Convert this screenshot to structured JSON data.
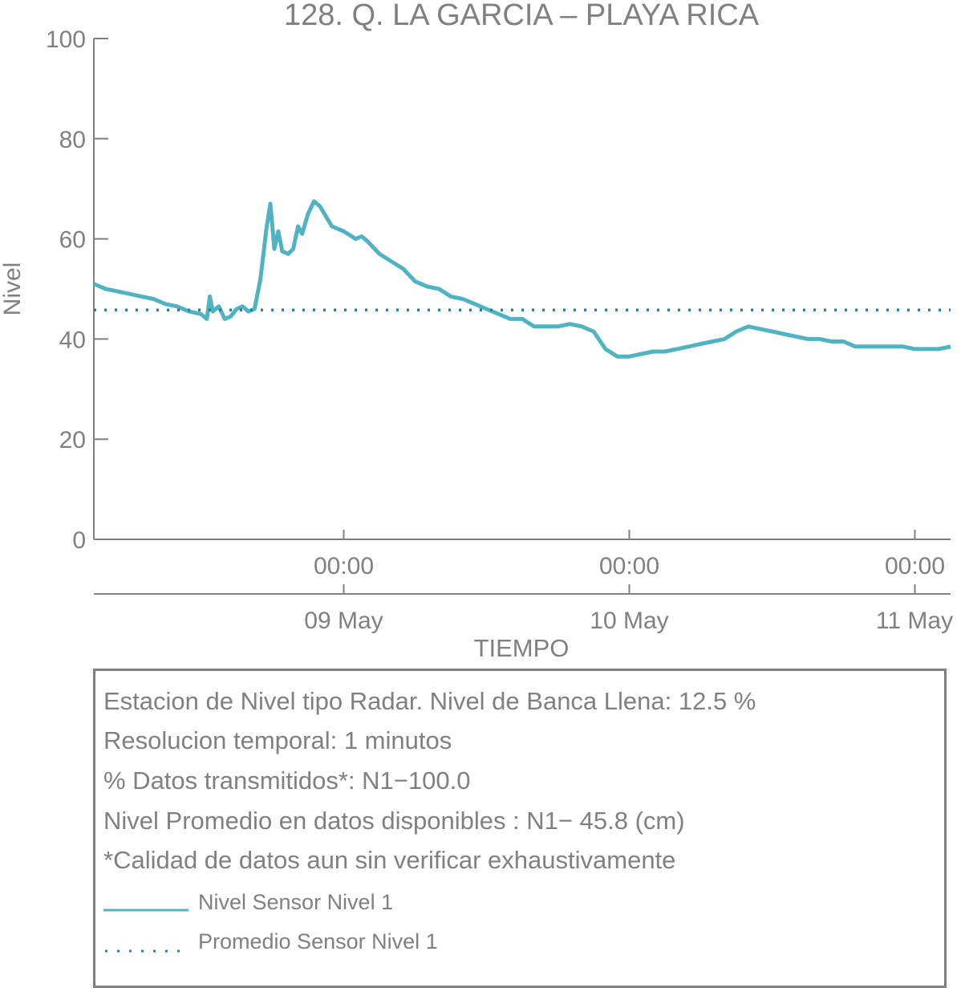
{
  "chart_data": {
    "type": "line",
    "title": "128. Q. LA GARCIA – PLAYA RICA",
    "xlabel": "TIEMPO",
    "ylabel": "Nivel",
    "ylim": [
      0,
      100
    ],
    "yticks": [
      0,
      20,
      40,
      60,
      80,
      100
    ],
    "ytick_labels": [
      "0",
      "20",
      "40",
      "60",
      "80",
      "100"
    ],
    "xlim": [
      "2024-05-08 03:00",
      "2024-05-11 03:00"
    ],
    "xticks": [
      {
        "time": "2024-05-09 00:00",
        "time_label": "00:00",
        "date_label": "09 May"
      },
      {
        "time": "2024-05-10 00:00",
        "time_label": "00:00",
        "date_label": "10 May"
      },
      {
        "time": "2024-05-11 00:00",
        "time_label": "00:00",
        "date_label": "11 May"
      }
    ],
    "grid": false,
    "legend_position": "bottom, inside info box",
    "series": [
      {
        "name": "Nivel Sensor Nivel 1",
        "style": "solid",
        "color": "#4fb3c2",
        "points": [
          [
            "2024-05-08 03:00",
            51.0
          ],
          [
            "2024-05-08 04:00",
            50.0
          ],
          [
            "2024-05-08 05:00",
            49.5
          ],
          [
            "2024-05-08 06:00",
            49.0
          ],
          [
            "2024-05-08 07:00",
            48.5
          ],
          [
            "2024-05-08 08:00",
            48.0
          ],
          [
            "2024-05-08 09:00",
            47.0
          ],
          [
            "2024-05-08 10:00",
            46.5
          ],
          [
            "2024-05-08 11:00",
            45.5
          ],
          [
            "2024-05-08 12:00",
            45.0
          ],
          [
            "2024-05-08 12:30",
            44.0
          ],
          [
            "2024-05-08 12:45",
            48.5
          ],
          [
            "2024-05-08 13:00",
            45.5
          ],
          [
            "2024-05-08 13:30",
            46.5
          ],
          [
            "2024-05-08 14:00",
            44.0
          ],
          [
            "2024-05-08 14:30",
            44.5
          ],
          [
            "2024-05-08 15:00",
            46.0
          ],
          [
            "2024-05-08 15:30",
            46.5
          ],
          [
            "2024-05-08 16:00",
            45.5
          ],
          [
            "2024-05-08 16:30",
            46.0
          ],
          [
            "2024-05-08 17:00",
            52.0
          ],
          [
            "2024-05-08 17:30",
            62.0
          ],
          [
            "2024-05-08 17:50",
            67.0
          ],
          [
            "2024-05-08 18:10",
            58.0
          ],
          [
            "2024-05-08 18:30",
            61.5
          ],
          [
            "2024-05-08 18:50",
            57.5
          ],
          [
            "2024-05-08 19:20",
            57.0
          ],
          [
            "2024-05-08 19:45",
            58.0
          ],
          [
            "2024-05-08 20:10",
            62.5
          ],
          [
            "2024-05-08 20:30",
            61.0
          ],
          [
            "2024-05-08 21:00",
            65.0
          ],
          [
            "2024-05-08 21:30",
            67.5
          ],
          [
            "2024-05-08 22:00",
            66.5
          ],
          [
            "2024-05-08 23:00",
            62.5
          ],
          [
            "2024-05-09 00:00",
            61.5
          ],
          [
            "2024-05-09 01:00",
            60.0
          ],
          [
            "2024-05-09 01:30",
            60.5
          ],
          [
            "2024-05-09 02:00",
            59.5
          ],
          [
            "2024-05-09 03:00",
            57.0
          ],
          [
            "2024-05-09 04:00",
            55.5
          ],
          [
            "2024-05-09 05:00",
            54.0
          ],
          [
            "2024-05-09 06:00",
            51.5
          ],
          [
            "2024-05-09 07:00",
            50.5
          ],
          [
            "2024-05-09 08:00",
            50.0
          ],
          [
            "2024-05-09 09:00",
            48.5
          ],
          [
            "2024-05-09 10:00",
            48.0
          ],
          [
            "2024-05-09 11:00",
            47.0
          ],
          [
            "2024-05-09 12:00",
            46.0
          ],
          [
            "2024-05-09 13:00",
            45.0
          ],
          [
            "2024-05-09 14:00",
            44.0
          ],
          [
            "2024-05-09 15:00",
            44.0
          ],
          [
            "2024-05-09 16:00",
            42.5
          ],
          [
            "2024-05-09 17:00",
            42.5
          ],
          [
            "2024-05-09 18:00",
            42.5
          ],
          [
            "2024-05-09 19:00",
            43.0
          ],
          [
            "2024-05-09 20:00",
            42.5
          ],
          [
            "2024-05-09 21:00",
            41.5
          ],
          [
            "2024-05-09 22:00",
            38.0
          ],
          [
            "2024-05-09 23:00",
            36.5
          ],
          [
            "2024-05-10 00:00",
            36.5
          ],
          [
            "2024-05-10 01:00",
            37.0
          ],
          [
            "2024-05-10 02:00",
            37.5
          ],
          [
            "2024-05-10 03:00",
            37.5
          ],
          [
            "2024-05-10 04:00",
            38.0
          ],
          [
            "2024-05-10 05:00",
            38.5
          ],
          [
            "2024-05-10 06:00",
            39.0
          ],
          [
            "2024-05-10 07:00",
            39.5
          ],
          [
            "2024-05-10 08:00",
            40.0
          ],
          [
            "2024-05-10 09:00",
            41.5
          ],
          [
            "2024-05-10 10:00",
            42.5
          ],
          [
            "2024-05-10 11:00",
            42.0
          ],
          [
            "2024-05-10 12:00",
            41.5
          ],
          [
            "2024-05-10 13:00",
            41.0
          ],
          [
            "2024-05-10 14:00",
            40.5
          ],
          [
            "2024-05-10 15:00",
            40.0
          ],
          [
            "2024-05-10 16:00",
            40.0
          ],
          [
            "2024-05-10 17:00",
            39.5
          ],
          [
            "2024-05-10 18:00",
            39.5
          ],
          [
            "2024-05-10 19:00",
            38.5
          ],
          [
            "2024-05-10 20:00",
            38.5
          ],
          [
            "2024-05-10 21:00",
            38.5
          ],
          [
            "2024-05-10 22:00",
            38.5
          ],
          [
            "2024-05-10 23:00",
            38.5
          ],
          [
            "2024-05-11 00:00",
            38.0
          ],
          [
            "2024-05-11 01:00",
            38.0
          ],
          [
            "2024-05-11 02:00",
            38.0
          ],
          [
            "2024-05-11 03:00",
            38.5
          ]
        ]
      },
      {
        "name": "Promedio Sensor Nivel 1",
        "style": "dotted",
        "color": "#2b7e9e",
        "points": [
          [
            "2024-05-08 03:00",
            45.8
          ],
          [
            "2024-05-11 03:00",
            45.8
          ]
        ]
      }
    ]
  },
  "info": {
    "lines": [
      "Estacion de Nivel tipo Radar. Nivel de Banca Llena: 12.5 %",
      "Resolucion temporal: 1 minutos",
      "% Datos transmitidos*: N1−100.0",
      "Nivel Promedio en datos disponibles : N1− 45.8 (cm)",
      "*Calidad de datos aun sin verificar exhaustivamente"
    ],
    "legend": [
      {
        "label": "Nivel Sensor Nivel 1",
        "style": "solid",
        "color": "#4fb3c2"
      },
      {
        "label": "Promedio Sensor Nivel 1",
        "style": "dotted",
        "color": "#2b7e9e"
      }
    ]
  }
}
